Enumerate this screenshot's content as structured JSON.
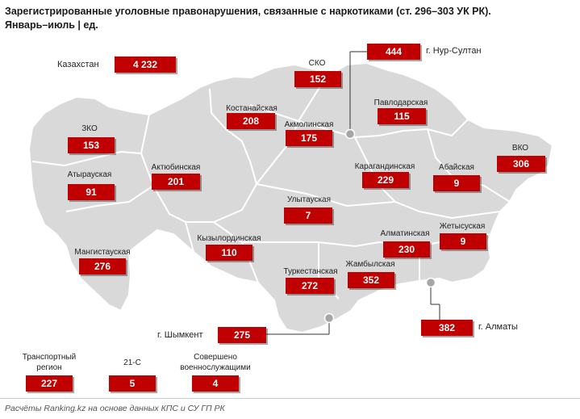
{
  "title": "Зарегистрированные уголовные правонарушения, связанные с наркотиками (ст. 296–303 УК РК).",
  "subtitle": "Январь–июль | ед.",
  "colors": {
    "map_fill": "#d9d9d9",
    "map_stroke": "#ffffff",
    "box": "#c00000"
  },
  "kazakhstan": {
    "label": "Казахстан",
    "value": "4 232"
  },
  "regions": {
    "sko": {
      "label": "СКО",
      "value": "152"
    },
    "kostanay": {
      "label": "Костанайская",
      "value": "208"
    },
    "akmola": {
      "label": "Акмолинская",
      "value": "175"
    },
    "pavlodar": {
      "label": "Павлодарская",
      "value": "115"
    },
    "zko": {
      "label": "ЗКО",
      "value": "153"
    },
    "atyrau": {
      "label": "Атырауская",
      "value": "91"
    },
    "aktobe": {
      "label": "Актюбинская",
      "value": "201"
    },
    "karaganda": {
      "label": "Карагандинская",
      "value": "229"
    },
    "abai": {
      "label": "Абайская",
      "value": "9"
    },
    "vko": {
      "label": "ВКО",
      "value": "306"
    },
    "ulytau": {
      "label": "Улытауская",
      "value": "7"
    },
    "almaty_reg": {
      "label": "Алматинская",
      "value": "230"
    },
    "zhetysu": {
      "label": "Жетысуская",
      "value": "9"
    },
    "mangystau": {
      "label": "Мангистауская",
      "value": "276"
    },
    "kyzylorda": {
      "label": "Кызылординская",
      "value": "110"
    },
    "turkestan": {
      "label": "Туркестанская",
      "value": "272"
    },
    "zhambyl": {
      "label": "Жамбылская",
      "value": "352"
    }
  },
  "cities": {
    "astana": {
      "label": "г. Нур-Султан",
      "value": "444"
    },
    "shymkent": {
      "label": "г. Шымкент",
      "value": "275"
    },
    "almaty": {
      "label": "г. Алматы",
      "value": "382"
    }
  },
  "extras": {
    "transport": {
      "label_line1": "Транспортный",
      "label_line2": "регион",
      "value": "227"
    },
    "c21": {
      "label": "21-С",
      "value": "5"
    },
    "military": {
      "label_line1": "Совершено",
      "label_line2": "военнослужащими",
      "value": "4"
    }
  },
  "source": "Расчёты Ranking.kz на основе данных КПС и СУ ГП РК"
}
